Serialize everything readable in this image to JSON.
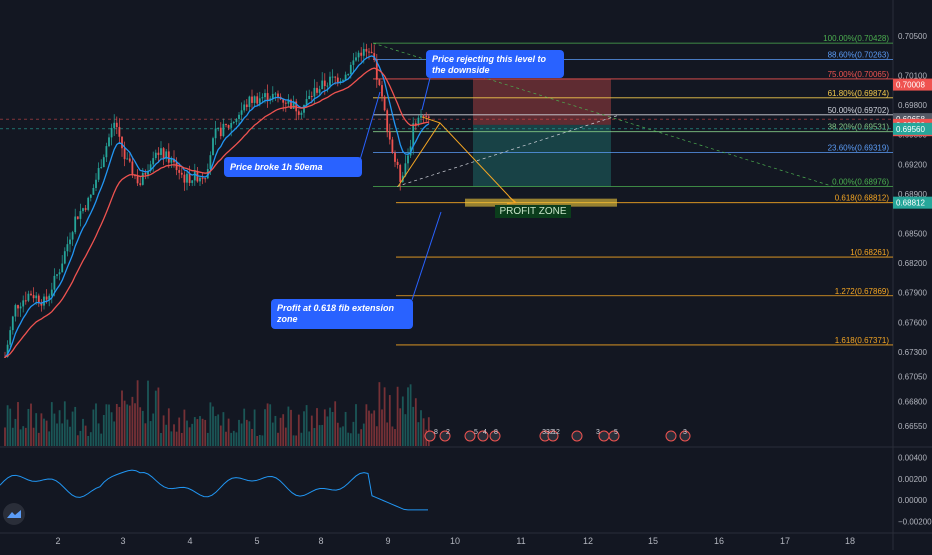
{
  "chart_data": {
    "type": "candlestick",
    "price_axis": {
      "ticks": [
        "0.70500",
        "0.70100",
        "0.69800",
        "0.69500",
        "0.69200",
        "0.68900",
        "0.68500",
        "0.68200",
        "0.67900",
        "0.67600",
        "0.67300",
        "0.67050",
        "0.66800",
        "0.66550"
      ],
      "tick_values": [
        0.705,
        0.701,
        0.698,
        0.695,
        0.692,
        0.689,
        0.685,
        0.682,
        0.679,
        0.676,
        0.673,
        0.6705,
        0.668,
        0.6655
      ],
      "price_labels": [
        {
          "text": "0.70008",
          "color": "#ef5350"
        },
        {
          "text": "0.69658",
          "color": "#555a66"
        },
        {
          "text": "0.69600",
          "color": "#ef5350"
        },
        {
          "text": "08:46",
          "color": "#ef5350"
        },
        {
          "text": "0.69560",
          "color": "#26a69a"
        },
        {
          "text": "0.68812",
          "color": "#26a69a"
        }
      ],
      "price_label_values": [
        0.70008,
        0.69658,
        0.696,
        0.69546,
        0.6956,
        0.68812
      ]
    },
    "x_axis": {
      "ticks": [
        "2",
        "3",
        "4",
        "5",
        "8",
        "9",
        "10",
        "11",
        "12",
        "15",
        "16",
        "17",
        "18"
      ],
      "range": [
        "2",
        "18"
      ]
    },
    "indicator_axis": {
      "ticks": [
        "0.00400",
        "0.00200",
        "0.00000",
        "−0.00200"
      ],
      "tick_values": [
        0.004,
        0.002,
        0,
        -0.002
      ],
      "range": [
        -0.0025,
        0.0045
      ]
    },
    "fib_levels": [
      {
        "label": "100.00%(0.70428)",
        "value": 0.70428,
        "color": "#4caf50"
      },
      {
        "label": "88.60%(0.70263)",
        "value": 0.70263,
        "color": "#5b9cf6"
      },
      {
        "label": "75.00%(0.70065)",
        "value": 0.70065,
        "color": "#ef5350"
      },
      {
        "label": "61.80%(0.69874)",
        "value": 0.69874,
        "color": "#f2c94c"
      },
      {
        "label": "50.00%(0.69702)",
        "value": 0.69702,
        "color": "#d1d4dc"
      },
      {
        "label": "38.20%(0.69531)",
        "value": 0.69531,
        "color": "#81c784"
      },
      {
        "label": "23.60%(0.69319)",
        "value": 0.69319,
        "color": "#5b9cf6"
      },
      {
        "label": "0.00%(0.68976)",
        "value": 0.68976,
        "color": "#4caf50"
      }
    ],
    "fib_extension_levels": [
      {
        "label": "0.618(0.68812)",
        "value": 0.68812,
        "color": "#f5a623"
      },
      {
        "label": "1(0.68261)",
        "value": 0.68261,
        "color": "#f5a623"
      },
      {
        "label": "1.272(0.67869)",
        "value": 0.67869,
        "color": "#f5a623"
      },
      {
        "label": "1.618(0.67371)",
        "value": 0.67371,
        "color": "#f5a623"
      }
    ],
    "annotations": {
      "callout_top": "Price rejecting this level to the downside",
      "callout_mid": "Price broke 1h 50ema",
      "callout_bottom": "Profit at 0.618 fib extension zone",
      "profit_zone": "PROFIT ZONE"
    },
    "event_markers": [
      "8",
      "2",
      "5",
      "4",
      "8",
      "332",
      "12",
      "3",
      "5",
      "3"
    ],
    "colors": {
      "up": "#26a69a",
      "down": "#ef5350",
      "ema_fast": "#2196f3",
      "ema_slow": "#ef5350",
      "background": "#131722"
    }
  }
}
